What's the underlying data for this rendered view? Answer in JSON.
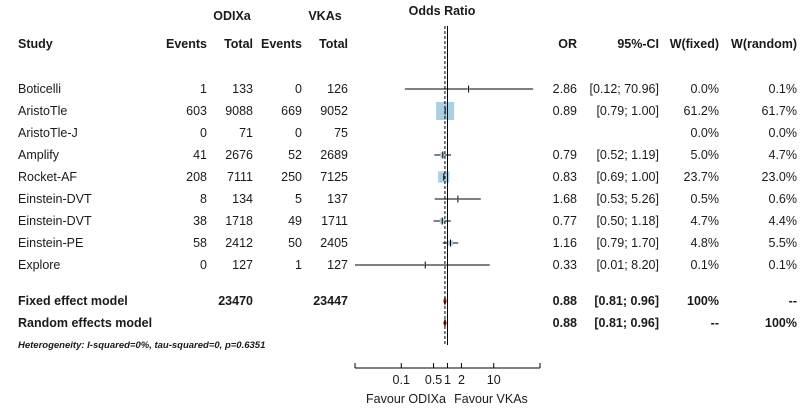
{
  "chart_data": {
    "type": "forest",
    "title": "Odds Ratio",
    "group_headers": {
      "experimental": "ODIXa",
      "control": "VKAs"
    },
    "columns": {
      "study": "Study",
      "events_e": "Events",
      "total_e": "Total",
      "events_c": "Events",
      "total_c": "Total",
      "or": "OR",
      "ci": "95%-CI",
      "w_fixed": "W(fixed)",
      "w_random": "W(random)"
    },
    "studies": [
      {
        "study": "Boticelli",
        "events_e": 1,
        "total_e": 133,
        "events_c": 0,
        "total_c": 126,
        "or": 2.86,
        "lower": 0.12,
        "upper": 70.96,
        "or_text": "2.86",
        "ci_text": "[0.12; 70.96]",
        "w_fixed": "0.0%",
        "w_random": "0.1%",
        "weight": 0.0
      },
      {
        "study": "AristoTle",
        "events_e": 603,
        "total_e": 9088,
        "events_c": 669,
        "total_c": 9052,
        "or": 0.89,
        "lower": 0.79,
        "upper": 1.0,
        "or_text": "0.89",
        "ci_text": "[0.79;  1.00]",
        "w_fixed": "61.2%",
        "w_random": "61.7%",
        "weight": 61.2
      },
      {
        "study": "AristoTle-J",
        "events_e": 0,
        "total_e": 71,
        "events_c": 0,
        "total_c": 75,
        "or": null,
        "lower": null,
        "upper": null,
        "or_text": "",
        "ci_text": "",
        "w_fixed": "0.0%",
        "w_random": "0.0%",
        "weight": 0.0
      },
      {
        "study": "Amplify",
        "events_e": 41,
        "total_e": 2676,
        "events_c": 52,
        "total_c": 2689,
        "or": 0.79,
        "lower": 0.52,
        "upper": 1.19,
        "or_text": "0.79",
        "ci_text": "[0.52;  1.19]",
        "w_fixed": "5.0%",
        "w_random": "4.7%",
        "weight": 5.0
      },
      {
        "study": "Rocket-AF",
        "events_e": 208,
        "total_e": 7111,
        "events_c": 250,
        "total_c": 7125,
        "or": 0.83,
        "lower": 0.69,
        "upper": 1.0,
        "or_text": "0.83",
        "ci_text": "[0.69;  1.00]",
        "w_fixed": "23.7%",
        "w_random": "23.0%",
        "weight": 23.7
      },
      {
        "study": "Einstein-DVT",
        "events_e": 8,
        "total_e": 134,
        "events_c": 5,
        "total_c": 137,
        "or": 1.68,
        "lower": 0.53,
        "upper": 5.26,
        "or_text": "1.68",
        "ci_text": "[0.53;  5.26]",
        "w_fixed": "0.5%",
        "w_random": "0.6%",
        "weight": 0.5
      },
      {
        "study": "Einstein-DVT",
        "events_e": 38,
        "total_e": 1718,
        "events_c": 49,
        "total_c": 1711,
        "or": 0.77,
        "lower": 0.5,
        "upper": 1.18,
        "or_text": "0.77",
        "ci_text": "[0.50;  1.18]",
        "w_fixed": "4.7%",
        "w_random": "4.4%",
        "weight": 4.7
      },
      {
        "study": "Einstein-PE",
        "events_e": 58,
        "total_e": 2412,
        "events_c": 50,
        "total_c": 2405,
        "or": 1.16,
        "lower": 0.79,
        "upper": 1.7,
        "or_text": "1.16",
        "ci_text": "[0.79;  1.70]",
        "w_fixed": "4.8%",
        "w_random": "5.5%",
        "weight": 4.8
      },
      {
        "study": "Explore",
        "events_e": 0,
        "total_e": 127,
        "events_c": 1,
        "total_c": 127,
        "or": 0.33,
        "lower": 0.01,
        "upper": 8.2,
        "or_text": "0.33",
        "ci_text": "[0.01;  8.20]",
        "w_fixed": "0.1%",
        "w_random": "0.1%",
        "weight": 0.1
      }
    ],
    "pooled": [
      {
        "label": "Fixed effect model",
        "total_e": "23470",
        "total_c": "23447",
        "or": 0.88,
        "lower": 0.81,
        "upper": 0.96,
        "or_text": "0.88",
        "ci_text": "[0.81;  0.96]",
        "w_fixed": "100%",
        "w_random": "--"
      },
      {
        "label": "Random effects model",
        "total_e": "",
        "total_c": "",
        "or": 0.88,
        "lower": 0.81,
        "upper": 0.96,
        "or_text": "0.88",
        "ci_text": "[0.81;  0.96]",
        "w_fixed": "--",
        "w_random": "100%"
      }
    ],
    "heterogeneity": "Heterogeneity: I-squared=0%, tau-squared=0, p=0.6351",
    "axis": {
      "scale": "log",
      "xlim": [
        0.01,
        100
      ],
      "ticks": [
        0.1,
        0.5,
        1,
        2,
        10
      ],
      "tick_labels": [
        "0.1",
        "0.5",
        "1",
        "2",
        "10"
      ],
      "minor_ticks": [
        0.01,
        100
      ],
      "label_left": "Favour ODIXa",
      "label_right": "Favour VKAs"
    },
    "colors": {
      "square": "#a9cfe0",
      "diamond": "#8b1a1a",
      "line": "#000000"
    }
  }
}
